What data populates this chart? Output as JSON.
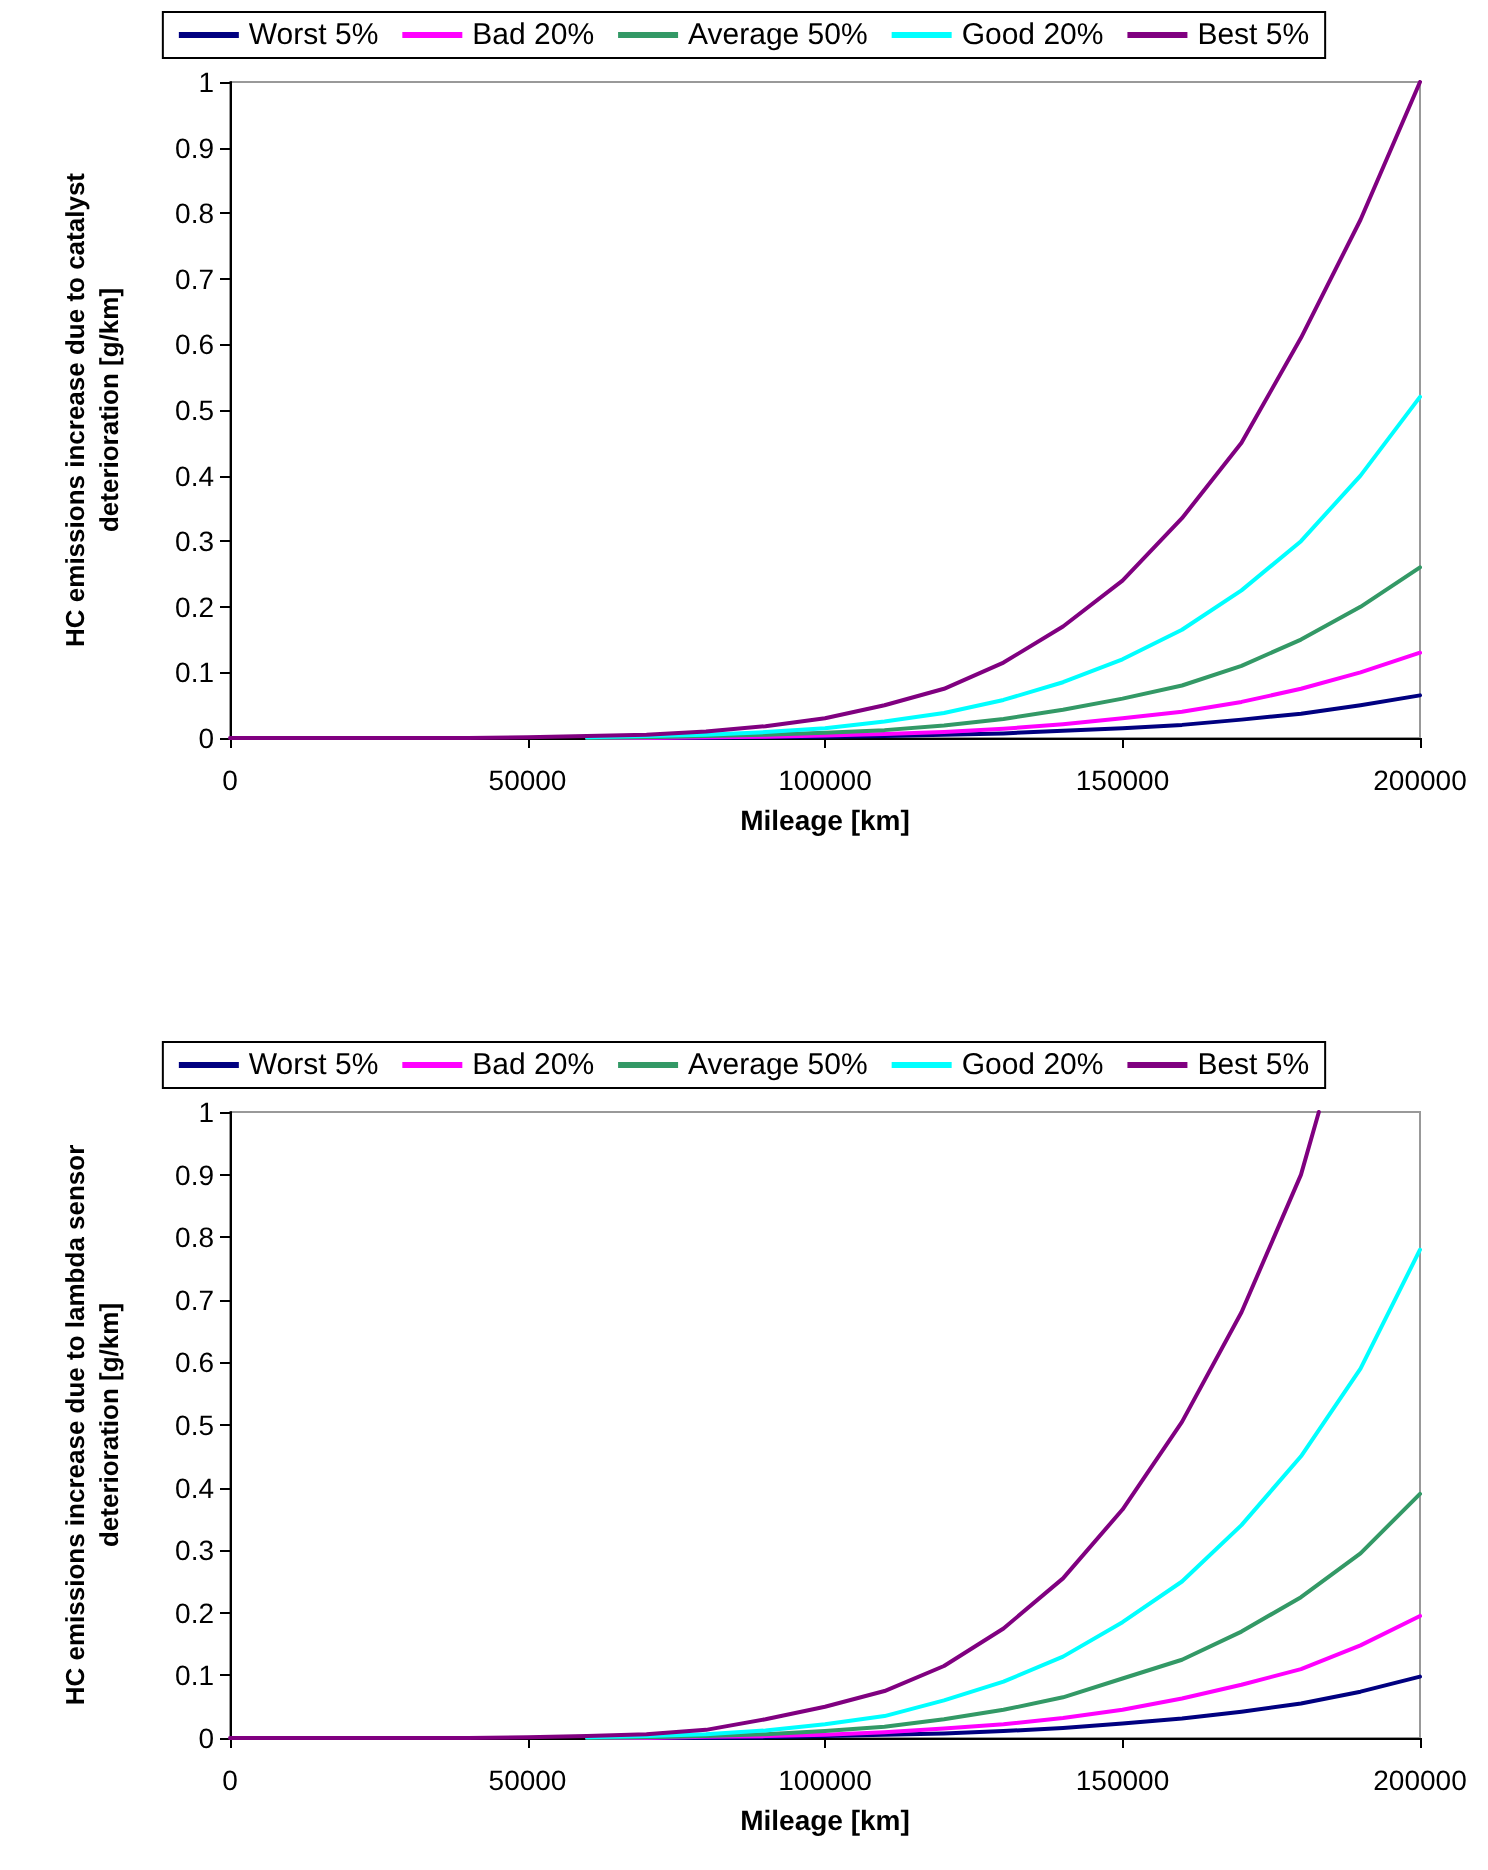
{
  "chart_data": [
    {
      "type": "line",
      "xlabel": "Mileage [km]",
      "ylabel": "HC emissions increase due to catalyst deterioration [g/km]",
      "legend": "top",
      "x": [
        60000,
        70000,
        80000,
        90000,
        100000,
        110000,
        120000,
        130000,
        140000,
        150000,
        160000,
        170000,
        180000,
        190000,
        200000
      ],
      "series": [
        {
          "name": "Worst 5%",
          "color": "#000080",
          "values": [
            0,
            0,
            0,
            0.001,
            0.002,
            0.003,
            0.005,
            0.007,
            0.011,
            0.015,
            0.02,
            0.028,
            0.037,
            0.05,
            0.065
          ]
        },
        {
          "name": "Bad 20%",
          "color": "#ff00ff",
          "values": [
            0,
            0,
            0.001,
            0.002,
            0.004,
            0.006,
            0.009,
            0.014,
            0.021,
            0.03,
            0.04,
            0.055,
            0.075,
            0.1,
            0.13
          ]
        },
        {
          "name": "Average 50%",
          "color": "#339966",
          "values": [
            0,
            0.001,
            0.003,
            0.005,
            0.008,
            0.012,
            0.019,
            0.029,
            0.043,
            0.06,
            0.08,
            0.11,
            0.15,
            0.2,
            0.26
          ]
        },
        {
          "name": "Good 20%",
          "color": "#00ffff",
          "values": [
            0.001,
            0.003,
            0.005,
            0.009,
            0.015,
            0.025,
            0.038,
            0.058,
            0.085,
            0.12,
            0.165,
            0.225,
            0.3,
            0.4,
            0.52
          ]
        },
        {
          "name": "Best 5%",
          "color": "#800080",
          "x": [
            0,
            10000,
            20000,
            30000,
            40000,
            50000,
            60000,
            70000,
            80000,
            90000,
            100000,
            110000,
            120000,
            130000,
            140000,
            150000,
            160000,
            170000,
            180000,
            190000,
            200000
          ],
          "values": [
            0,
            0,
            0,
            0,
            0,
            0.001,
            0.003,
            0.005,
            0.01,
            0.018,
            0.03,
            0.05,
            0.075,
            0.115,
            0.17,
            0.24,
            0.335,
            0.45,
            0.61,
            0.79,
            1.0
          ]
        }
      ],
      "xlim": [
        0,
        200000
      ],
      "xticks": [
        0,
        50000,
        100000,
        150000,
        200000
      ],
      "ylim": [
        0,
        1
      ],
      "yticks": [
        0,
        0.1,
        0.2,
        0.3,
        0.4,
        0.5,
        0.6,
        0.7,
        0.8,
        0.9,
        1
      ]
    },
    {
      "type": "line",
      "xlabel": "Mileage [km]",
      "ylabel": "HC emissions increase due to lambda sensor deterioration [g/km]",
      "legend": "top",
      "x": [
        60000,
        70000,
        80000,
        90000,
        100000,
        110000,
        120000,
        130000,
        140000,
        150000,
        160000,
        170000,
        180000,
        190000,
        200000
      ],
      "series": [
        {
          "name": "Worst 5%",
          "color": "#000080",
          "values": [
            0,
            0,
            0,
            0.001,
            0.003,
            0.005,
            0.007,
            0.011,
            0.016,
            0.023,
            0.031,
            0.042,
            0.055,
            0.074,
            0.098
          ]
        },
        {
          "name": "Bad 20%",
          "color": "#ff00ff",
          "values": [
            0,
            0,
            0.002,
            0.003,
            0.005,
            0.009,
            0.015,
            0.022,
            0.032,
            0.045,
            0.063,
            0.085,
            0.11,
            0.148,
            0.195
          ]
        },
        {
          "name": "Average 50%",
          "color": "#339966",
          "values": [
            0,
            0.001,
            0.003,
            0.006,
            0.011,
            0.018,
            0.03,
            0.045,
            0.065,
            0.095,
            0.125,
            0.17,
            0.225,
            0.295,
            0.39
          ]
        },
        {
          "name": "Good 20%",
          "color": "#00ffff",
          "values": [
            0.001,
            0.003,
            0.006,
            0.012,
            0.022,
            0.035,
            0.06,
            0.09,
            0.13,
            0.185,
            0.25,
            0.34,
            0.45,
            0.59,
            0.78
          ]
        },
        {
          "name": "Best 5%",
          "color": "#800080",
          "x": [
            0,
            10000,
            20000,
            30000,
            40000,
            50000,
            60000,
            70000,
            80000,
            90000,
            100000,
            110000,
            120000,
            130000,
            140000,
            150000,
            160000,
            170000,
            180000,
            183000
          ],
          "values": [
            0,
            0,
            0,
            0,
            0,
            0.001,
            0.003,
            0.006,
            0.013,
            0.03,
            0.05,
            0.075,
            0.115,
            0.175,
            0.255,
            0.365,
            0.505,
            0.68,
            0.9,
            1.0
          ]
        }
      ],
      "xlim": [
        0,
        200000
      ],
      "xticks": [
        0,
        50000,
        100000,
        150000,
        200000
      ],
      "ylim": [
        0,
        1
      ],
      "yticks": [
        0,
        0.1,
        0.2,
        0.3,
        0.4,
        0.5,
        0.6,
        0.7,
        0.8,
        0.9,
        1
      ]
    }
  ]
}
